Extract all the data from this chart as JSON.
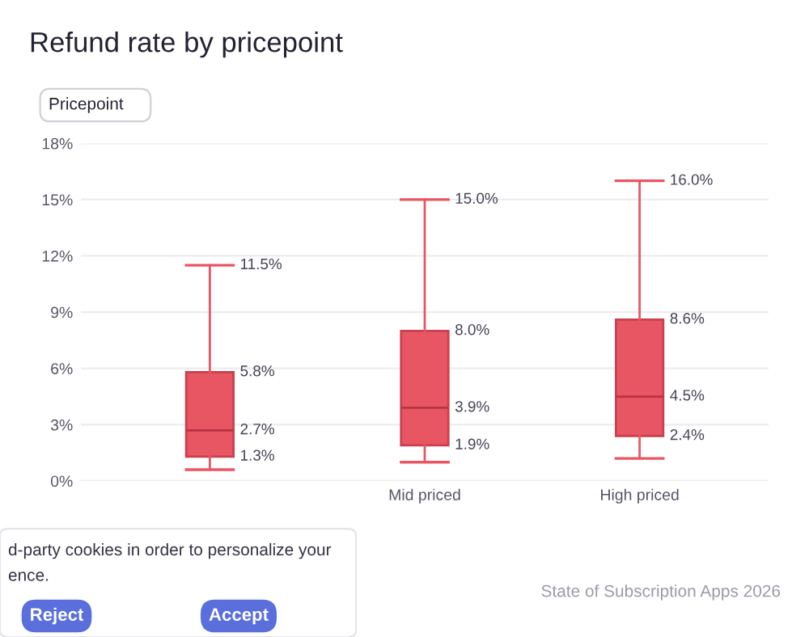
{
  "chart_data": {
    "type": "box",
    "title": "Refund rate by pricepoint",
    "categories": [
      null,
      "Mid priced",
      "High priced"
    ],
    "boxes": [
      {
        "low": 0.6,
        "q1": 1.3,
        "median": 2.7,
        "q3": 5.8,
        "high": 11.5
      },
      {
        "low": 1.0,
        "q1": 1.9,
        "median": 3.9,
        "q3": 8.0,
        "high": 15.0
      },
      {
        "low": 1.2,
        "q1": 2.4,
        "median": 4.5,
        "q3": 8.6,
        "high": 16.0
      }
    ],
    "color": "#e85663",
    "ylim": [
      0,
      18
    ],
    "yticks": [
      {
        "value": 0,
        "label": "0%"
      },
      {
        "value": 3,
        "label": "3%"
      },
      {
        "value": 6,
        "label": "6%"
      },
      {
        "value": 9,
        "label": "9%"
      },
      {
        "value": 12,
        "label": "12%"
      },
      {
        "value": 15,
        "label": "15%"
      },
      {
        "value": 18,
        "label": "18%"
      }
    ],
    "grid": "y",
    "value_labels": [
      [
        "11.5%",
        "5.8%",
        "2.7%",
        "1.3%"
      ],
      [
        "15.0%",
        "8.0%",
        "3.9%",
        "1.9%"
      ],
      [
        "16.0%",
        "8.6%",
        "4.5%",
        "2.4%"
      ]
    ],
    "annotations": [
      "Pricepoint",
      "d-party cookies in order to personalize your",
      "ence.",
      "Reject",
      "Accept",
      "State of Subscription Apps 2026"
    ]
  }
}
